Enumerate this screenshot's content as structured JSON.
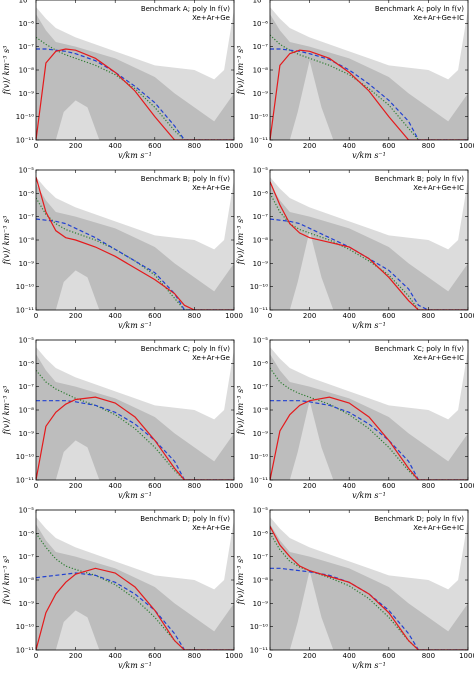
{
  "figure": {
    "colors": {
      "band_outer": "#dcdcdc",
      "band_inner": "#bdbdbd",
      "true_line": "#e41a1c",
      "dashed_line": "#2140d0",
      "dotted_line": "#2e7d32"
    }
  },
  "chart_data": [
    {
      "type": "line",
      "benchmark": "A",
      "title": "Benchmark A; poly ln f(v)",
      "subtitle": "Xe+Ar+Ge",
      "xlabel": "v/km s⁻¹",
      "ylabel": "f(v)/ km⁻³ s³",
      "xlim": [
        0,
        1000
      ],
      "ylim_log10": [
        -11,
        -5
      ],
      "x_ticks": [
        0,
        200,
        400,
        600,
        800,
        1000
      ],
      "y_ticks_log10": [
        -11,
        -10,
        -9,
        -8,
        -7,
        -6,
        -5
      ],
      "y_tick_labels": [
        "10⁻¹¹",
        "10⁻¹⁰",
        "10⁻⁹",
        "10⁻⁸",
        "10⁻⁷",
        "10⁻⁶",
        "10⁻⁵"
      ],
      "has_ic": false,
      "x": [
        0,
        50,
        100,
        150,
        200,
        300,
        400,
        500,
        600,
        700,
        750,
        800,
        900,
        1000
      ],
      "true_log10": [
        -11,
        -7.7,
        -7.2,
        -7.1,
        -7.15,
        -7.5,
        -8.1,
        -8.9,
        -10.0,
        -11,
        -11,
        -11,
        -11,
        -11
      ],
      "dashed_log10": [
        -7.1,
        -7.1,
        -7.15,
        -7.2,
        -7.3,
        -7.6,
        -8.1,
        -8.7,
        -9.4,
        -10.4,
        -11,
        -11,
        -11,
        -11
      ],
      "dotted_log10": [
        -6.6,
        -6.9,
        -7.15,
        -7.35,
        -7.5,
        -7.8,
        -8.2,
        -8.8,
        -9.6,
        -10.6,
        -11,
        -11,
        -11,
        -11
      ]
    },
    {
      "type": "line",
      "benchmark": "A",
      "title": "Benchmark A; poly ln f(v)",
      "subtitle": "Xe+Ar+Ge+IC",
      "xlabel": "v/km s⁻¹",
      "ylabel": "f(v)/ km⁻³ s³",
      "xlim": [
        0,
        1000
      ],
      "ylim_log10": [
        -11,
        -5
      ],
      "x_ticks": [
        0,
        200,
        400,
        600,
        800,
        1000
      ],
      "y_ticks_log10": [
        -11,
        -10,
        -9,
        -8,
        -7,
        -6,
        -5
      ],
      "y_tick_labels": [
        "10⁻¹¹",
        "10⁻¹⁰",
        "10⁻⁹",
        "10⁻⁸",
        "10⁻⁷",
        "10⁻⁶",
        "10⁻⁵"
      ],
      "has_ic": true,
      "x": [
        0,
        50,
        100,
        150,
        200,
        300,
        400,
        500,
        600,
        700,
        750,
        800,
        900,
        1000
      ],
      "true_log10": [
        -11,
        -7.8,
        -7.3,
        -7.15,
        -7.2,
        -7.5,
        -8.1,
        -8.9,
        -10.0,
        -11,
        -11,
        -11,
        -11,
        -11
      ],
      "dashed_log10": [
        -7.1,
        -7.1,
        -7.15,
        -7.2,
        -7.3,
        -7.55,
        -8.0,
        -8.6,
        -9.3,
        -10.2,
        -11,
        -11,
        -11,
        -11
      ],
      "dotted_log10": [
        -6.5,
        -6.9,
        -7.15,
        -7.35,
        -7.5,
        -7.8,
        -8.2,
        -8.8,
        -9.5,
        -10.5,
        -11,
        -11,
        -11,
        -11
      ]
    },
    {
      "type": "line",
      "benchmark": "B",
      "title": "Benchmark B; poly ln f(v)",
      "subtitle": "Xe+Ar+Ge",
      "xlabel": "v/km s⁻¹",
      "ylabel": "f(v)/ km⁻³ s³",
      "xlim": [
        0,
        1000
      ],
      "ylim_log10": [
        -11,
        -5
      ],
      "x_ticks": [
        0,
        200,
        400,
        600,
        800,
        1000
      ],
      "y_ticks_log10": [
        -11,
        -10,
        -9,
        -8,
        -7,
        -6,
        -5
      ],
      "y_tick_labels": [
        "10⁻¹¹",
        "10⁻¹⁰",
        "10⁻⁹",
        "10⁻⁸",
        "10⁻⁷",
        "10⁻⁶",
        "10⁻⁵"
      ],
      "has_ic": false,
      "x": [
        0,
        50,
        100,
        150,
        200,
        300,
        400,
        500,
        600,
        700,
        750,
        800,
        900,
        1000
      ],
      "true_log10": [
        -5.3,
        -6.8,
        -7.6,
        -7.9,
        -8.0,
        -8.3,
        -8.7,
        -9.2,
        -9.7,
        -10.3,
        -10.8,
        -11,
        -11,
        -11
      ],
      "dashed_log10": [
        -7.1,
        -7.15,
        -7.2,
        -7.3,
        -7.5,
        -7.9,
        -8.4,
        -8.9,
        -9.4,
        -10.3,
        -11,
        -11,
        -11,
        -11
      ],
      "dotted_log10": [
        -6.2,
        -6.9,
        -7.3,
        -7.55,
        -7.7,
        -8.0,
        -8.4,
        -8.9,
        -9.5,
        -10.5,
        -11,
        -11,
        -11,
        -11
      ]
    },
    {
      "type": "line",
      "benchmark": "B",
      "title": "Benchmark B; poly ln f(v)",
      "subtitle": "Xe+Ar+Ge+IC",
      "xlabel": "v/km s⁻¹",
      "ylabel": "f(v)/ km⁻³ s³",
      "xlim": [
        0,
        1000
      ],
      "ylim_log10": [
        -11,
        -5
      ],
      "x_ticks": [
        0,
        200,
        400,
        600,
        800,
        1000
      ],
      "y_ticks_log10": [
        -11,
        -10,
        -9,
        -8,
        -7,
        -6,
        -5
      ],
      "y_tick_labels": [
        "10⁻¹¹",
        "10⁻¹⁰",
        "10⁻⁹",
        "10⁻⁸",
        "10⁻⁷",
        "10⁻⁶",
        "10⁻⁵"
      ],
      "has_ic": true,
      "x": [
        0,
        50,
        100,
        150,
        200,
        300,
        400,
        500,
        600,
        700,
        750,
        800,
        900,
        1000
      ],
      "true_log10": [
        -5.5,
        -6.5,
        -7.3,
        -7.7,
        -7.9,
        -8.1,
        -8.3,
        -8.8,
        -9.6,
        -10.6,
        -11,
        -11,
        -11,
        -11
      ],
      "dashed_log10": [
        -7.1,
        -7.15,
        -7.2,
        -7.3,
        -7.5,
        -7.9,
        -8.3,
        -8.8,
        -9.3,
        -10.1,
        -10.8,
        -11,
        -11,
        -11
      ],
      "dotted_log10": [
        -6.0,
        -6.8,
        -7.3,
        -7.55,
        -7.7,
        -8.0,
        -8.4,
        -8.9,
        -9.5,
        -10.4,
        -11,
        -11,
        -11,
        -11
      ]
    },
    {
      "type": "line",
      "benchmark": "C",
      "title": "Benchmark C; poly ln f(v)",
      "subtitle": "Xe+Ar+Ge",
      "xlabel": "v/km s⁻¹",
      "ylabel": "f(v)/ km⁻³ s³",
      "xlim": [
        0,
        1000
      ],
      "ylim_log10": [
        -11,
        -5
      ],
      "x_ticks": [
        0,
        200,
        400,
        600,
        800,
        1000
      ],
      "y_ticks_log10": [
        -11,
        -10,
        -9,
        -8,
        -7,
        -6,
        -5
      ],
      "y_tick_labels": [
        "10⁻¹¹",
        "10⁻¹⁰",
        "10⁻⁹",
        "10⁻⁸",
        "10⁻⁷",
        "10⁻⁶",
        "10⁻⁵"
      ],
      "has_ic": false,
      "x": [
        0,
        50,
        100,
        150,
        200,
        300,
        400,
        500,
        600,
        700,
        750,
        800,
        900,
        1000
      ],
      "true_log10": [
        -11,
        -8.7,
        -8.1,
        -7.75,
        -7.55,
        -7.45,
        -7.7,
        -8.3,
        -9.3,
        -10.5,
        -11,
        -11,
        -11,
        -11
      ],
      "dashed_log10": [
        -7.6,
        -7.6,
        -7.6,
        -7.6,
        -7.65,
        -7.8,
        -8.1,
        -8.6,
        -9.3,
        -10.2,
        -11,
        -11,
        -11,
        -11
      ],
      "dotted_log10": [
        -6.3,
        -6.8,
        -7.1,
        -7.3,
        -7.5,
        -7.8,
        -8.2,
        -8.8,
        -9.6,
        -10.6,
        -11,
        -11,
        -11,
        -11
      ]
    },
    {
      "type": "line",
      "benchmark": "C",
      "title": "Benchmark C; poly ln f(v)",
      "subtitle": "Xe+Ar+Ge+IC",
      "xlabel": "v/km s⁻¹",
      "ylabel": "f(v)/ km⁻³ s³",
      "xlim": [
        0,
        1000
      ],
      "ylim_log10": [
        -11,
        -5
      ],
      "x_ticks": [
        0,
        200,
        400,
        600,
        800,
        1000
      ],
      "y_ticks_log10": [
        -11,
        -10,
        -9,
        -8,
        -7,
        -6,
        -5
      ],
      "y_tick_labels": [
        "10⁻¹¹",
        "10⁻¹⁰",
        "10⁻⁹",
        "10⁻⁸",
        "10⁻⁷",
        "10⁻⁶",
        "10⁻⁵"
      ],
      "has_ic": true,
      "x": [
        0,
        50,
        100,
        150,
        200,
        300,
        400,
        500,
        600,
        700,
        750,
        800,
        900,
        1000
      ],
      "true_log10": [
        -11,
        -8.9,
        -8.2,
        -7.8,
        -7.6,
        -7.45,
        -7.7,
        -8.3,
        -9.3,
        -10.5,
        -11,
        -11,
        -11,
        -11
      ],
      "dashed_log10": [
        -7.6,
        -7.6,
        -7.6,
        -7.6,
        -7.65,
        -7.8,
        -8.1,
        -8.6,
        -9.3,
        -10.2,
        -11,
        -11,
        -11,
        -11
      ],
      "dotted_log10": [
        -6.2,
        -6.8,
        -7.1,
        -7.3,
        -7.45,
        -7.75,
        -8.2,
        -8.8,
        -9.6,
        -10.6,
        -11,
        -11,
        -11,
        -11
      ]
    },
    {
      "type": "line",
      "benchmark": "D",
      "title": "Benchmark D; poly ln f(v)",
      "subtitle": "Xe+Ar+Ge",
      "xlabel": "v/km s⁻¹",
      "ylabel": "f(v)/ km⁻³ s³",
      "xlim": [
        0,
        1000
      ],
      "ylim_log10": [
        -11,
        -5
      ],
      "x_ticks": [
        0,
        200,
        400,
        600,
        800,
        1000
      ],
      "y_ticks_log10": [
        -11,
        -10,
        -9,
        -8,
        -7,
        -6,
        -5
      ],
      "y_tick_labels": [
        "10⁻¹¹",
        "10⁻¹⁰",
        "10⁻⁹",
        "10⁻⁸",
        "10⁻⁷",
        "10⁻⁶",
        "10⁻⁵"
      ],
      "has_ic": false,
      "x": [
        0,
        50,
        100,
        150,
        200,
        300,
        400,
        500,
        600,
        700,
        750,
        800,
        900,
        1000
      ],
      "true_log10": [
        -11,
        -9.4,
        -8.6,
        -8.1,
        -7.75,
        -7.5,
        -7.7,
        -8.3,
        -9.3,
        -10.6,
        -11,
        -11,
        -11,
        -11
      ],
      "dashed_log10": [
        -7.9,
        -7.85,
        -7.8,
        -7.75,
        -7.7,
        -7.8,
        -8.1,
        -8.6,
        -9.3,
        -10.3,
        -11,
        -11,
        -11,
        -11
      ],
      "dotted_log10": [
        -6.0,
        -6.6,
        -7.1,
        -7.4,
        -7.55,
        -7.8,
        -8.2,
        -8.8,
        -9.6,
        -10.6,
        -11,
        -11,
        -11,
        -11
      ]
    },
    {
      "type": "line",
      "benchmark": "D",
      "title": "Benchmark D; poly ln f(v)",
      "subtitle": "Xe+Ar+Ge+IC",
      "xlabel": "v/km s⁻¹",
      "ylabel": "f(v)/ km⁻³ s³",
      "xlim": [
        0,
        1000
      ],
      "ylim_log10": [
        -11,
        -5
      ],
      "x_ticks": [
        0,
        200,
        400,
        600,
        800,
        1000
      ],
      "y_ticks_log10": [
        -11,
        -10,
        -9,
        -8,
        -7,
        -6,
        -5
      ],
      "y_tick_labels": [
        "10⁻¹¹",
        "10⁻¹⁰",
        "10⁻⁹",
        "10⁻⁸",
        "10⁻⁷",
        "10⁻⁶",
        "10⁻⁵"
      ],
      "has_ic": true,
      "x": [
        0,
        50,
        100,
        150,
        200,
        300,
        400,
        500,
        600,
        700,
        750,
        800,
        900,
        1000
      ],
      "true_log10": [
        -5.7,
        -6.5,
        -7.0,
        -7.4,
        -7.6,
        -7.85,
        -8.1,
        -8.6,
        -9.4,
        -10.6,
        -11,
        -11,
        -11,
        -11
      ],
      "dashed_log10": [
        -7.5,
        -7.5,
        -7.55,
        -7.6,
        -7.65,
        -7.8,
        -8.1,
        -8.6,
        -9.3,
        -10.3,
        -11,
        -11,
        -11,
        -11
      ],
      "dotted_log10": [
        -6.0,
        -6.7,
        -7.2,
        -7.45,
        -7.6,
        -7.9,
        -8.25,
        -8.8,
        -9.6,
        -10.6,
        -11,
        -11,
        -11,
        -11
      ]
    }
  ]
}
